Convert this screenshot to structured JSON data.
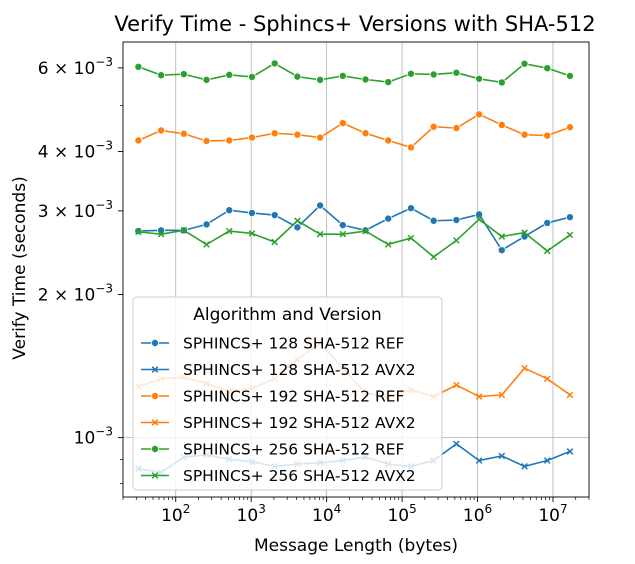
{
  "chart_data": {
    "type": "line",
    "title": "Verify Time - Sphincs+ Versions with SHA-512",
    "xlabel": "Message Length (bytes)",
    "ylabel": "Verify Time (seconds)",
    "xscale": "log",
    "yscale": "log",
    "xlim": [
      20,
      30000000
    ],
    "ylim": [
      0.00075,
      0.0068
    ],
    "grid": "vertical major gridlines; horizontal gridline at 1e-3",
    "x_ticks": [
      {
        "value": 100,
        "base": "10",
        "exp": "2"
      },
      {
        "value": 1000,
        "base": "10",
        "exp": "3"
      },
      {
        "value": 10000,
        "base": "10",
        "exp": "4"
      },
      {
        "value": 100000,
        "base": "10",
        "exp": "5"
      },
      {
        "value": 1000000,
        "base": "10",
        "exp": "6"
      },
      {
        "value": 10000000,
        "base": "10",
        "exp": "7"
      }
    ],
    "y_ticks": [
      {
        "value": 0.006,
        "mant": "6",
        "base": "10",
        "exp": "−3"
      },
      {
        "value": 0.004,
        "mant": "4",
        "base": "10",
        "exp": "−3"
      },
      {
        "value": 0.003,
        "mant": "3",
        "base": "10",
        "exp": "−3"
      },
      {
        "value": 0.002,
        "mant": "2",
        "base": "10",
        "exp": "−3"
      },
      {
        "value": 0.001,
        "mant": "",
        "base": "10",
        "exp": "−3"
      }
    ],
    "x": [
      32,
      64,
      128,
      256,
      512,
      1024,
      2048,
      4096,
      8192,
      16384,
      32768,
      65536,
      131072,
      262144,
      524288,
      1048576,
      2097152,
      4194304,
      8388608,
      16777216
    ],
    "legend": {
      "title": "Algorithm and Version",
      "placement": "lower-left"
    },
    "series": [
      {
        "name": "SPHINCS+ 128 SHA-512 REF",
        "color": "#1f77b4",
        "marker": "circle",
        "values": [
          0.00272,
          0.00273,
          0.00273,
          0.00281,
          0.00301,
          0.00297,
          0.00294,
          0.00277,
          0.00308,
          0.0028,
          0.00273,
          0.00289,
          0.00304,
          0.00286,
          0.00287,
          0.00295,
          0.00248,
          0.00265,
          0.00283,
          0.00291
        ]
      },
      {
        "name": "SPHINCS+ 128 SHA-512 AVX2",
        "color": "#1f77b4",
        "marker": "x",
        "values": [
          0.00086,
          0.000845,
          0.00091,
          0.00092,
          0.0009,
          0.00089,
          0.00087,
          0.00088,
          0.000885,
          0.000895,
          0.00091,
          0.00088,
          0.00087,
          0.000895,
          0.00097,
          0.000895,
          0.000915,
          0.00087,
          0.000895,
          0.000935
        ]
      },
      {
        "name": "SPHINCS+ 192 SHA-512 REF",
        "color": "#ff7f0e",
        "marker": "circle",
        "values": [
          0.00422,
          0.00443,
          0.00436,
          0.00421,
          0.00422,
          0.00428,
          0.00437,
          0.00434,
          0.00428,
          0.00459,
          0.00437,
          0.00422,
          0.00408,
          0.00451,
          0.00448,
          0.00479,
          0.00455,
          0.00434,
          0.00432,
          0.0045
        ]
      },
      {
        "name": "SPHINCS+ 192 SHA-512 AVX2",
        "color": "#ff7f0e",
        "marker": "x",
        "values": [
          0.00128,
          0.00133,
          0.00134,
          0.0013,
          0.00125,
          0.00127,
          0.00133,
          0.00146,
          0.00158,
          0.0014,
          0.00124,
          0.00122,
          0.00126,
          0.00122,
          0.00129,
          0.00122,
          0.00123,
          0.0014,
          0.00133,
          0.00123
        ]
      },
      {
        "name": "SPHINCS+ 256 SHA-512 REF",
        "color": "#2ca02c",
        "marker": "circle",
        "values": [
          0.00603,
          0.00579,
          0.00582,
          0.00566,
          0.0058,
          0.00574,
          0.00613,
          0.00575,
          0.00566,
          0.00577,
          0.00567,
          0.0056,
          0.00583,
          0.00581,
          0.00586,
          0.00569,
          0.00559,
          0.00612,
          0.00599,
          0.00577
        ]
      },
      {
        "name": "SPHINCS+ 256 SHA-512 AVX2",
        "color": "#2ca02c",
        "marker": "x",
        "values": [
          0.00271,
          0.00268,
          0.00273,
          0.00255,
          0.00272,
          0.00269,
          0.00258,
          0.00286,
          0.00268,
          0.00268,
          0.00272,
          0.00255,
          0.00263,
          0.0024,
          0.0026,
          0.00288,
          0.00265,
          0.0027,
          0.00247,
          0.00267
        ]
      }
    ]
  }
}
